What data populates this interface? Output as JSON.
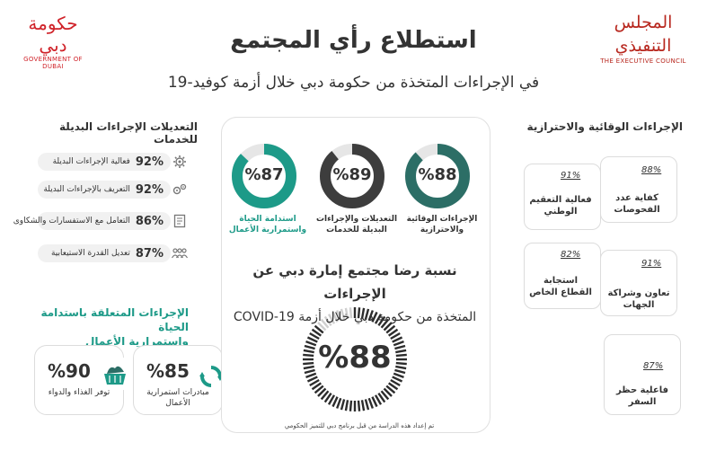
{
  "header": {
    "gov_logo_ar": "حكومة دبي",
    "gov_logo_en": "GOVERNMENT OF DUBAI",
    "council_logo_ar": "المجلس التنفيذي",
    "council_logo_en": "THE EXECUTIVE COUNCIL",
    "title": "استطلاع رأي المجتمع",
    "subtitle": "في الإجراءات المتخذة من حكومة دبي خلال أزمة كوفيد-19"
  },
  "left_services": {
    "heading": "التعديلات الإجراءات البديلة للخدمات",
    "items": [
      {
        "pct": "92%",
        "label": "فعالية الإجراءات البديلة",
        "icon": "gear-cog-icon"
      },
      {
        "pct": "92%",
        "label": "التعريف بالإجراءات البديلة",
        "icon": "gears-icon"
      },
      {
        "pct": "86%",
        "label": "التعامل مع الاستفسارات والشكاوى",
        "icon": "document-icon"
      },
      {
        "pct": "87%",
        "label": "تعديل القدرة الاستيعابية",
        "icon": "people-icon"
      }
    ]
  },
  "left_continuity": {
    "heading_line1": "الإجراءات المتعلقة باستدامة الحياة",
    "heading_line2": "واستمرارية الأعمال",
    "cards": [
      {
        "pct": "%90",
        "label": "توفر الغذاء والدواء",
        "icon": "food-basket-icon"
      },
      {
        "pct": "%85",
        "label": "مبادرات استمرارية الأعمال",
        "icon": "recycle-arrows-icon"
      }
    ]
  },
  "center": {
    "donuts": [
      {
        "value": "%87",
        "label": "استدامة الحياة واستمرارية الأعمال",
        "pct": 87,
        "color": "#1d9a88"
      },
      {
        "value": "%89",
        "label": "التعديلات والإجراءات البديلة للخدمات",
        "pct": 89,
        "color": "#3d3d3d"
      },
      {
        "value": "%88",
        "label": "الإجراءات الوقائية والاحترازية",
        "pct": 88,
        "color": "#2c6e66"
      }
    ],
    "question_line1": "نسبة رضا مجتمع إمارة دبي عن الإجراءات",
    "question_line2": "المتخذة من حكومة دبي خلال أزمة COVID-19",
    "overall_value": "%88",
    "footnote": "تم إعداد هذه الدراسة من قبل برنامج دبي للتميز الحكومي"
  },
  "right_preventive": {
    "heading": "الإجراءات الوقائية والاحترازية",
    "items": [
      {
        "pct": "88%",
        "label": "كفاية عدد الفحوصات"
      },
      {
        "pct": "91%",
        "label": "فعالية التعقيم الوطني"
      },
      {
        "pct": "91%",
        "label": "تعاون وشراكة الجهات"
      },
      {
        "pct": "82%",
        "label": "استجابة القطاع الخاص"
      },
      {
        "pct": "87%",
        "label": "فاعلية حظر السفر"
      }
    ]
  },
  "colors": {
    "teal": "#1d9a88",
    "dark": "#3d3d3d",
    "green_dark": "#2c6e66",
    "red_logo": "#d0232a"
  }
}
